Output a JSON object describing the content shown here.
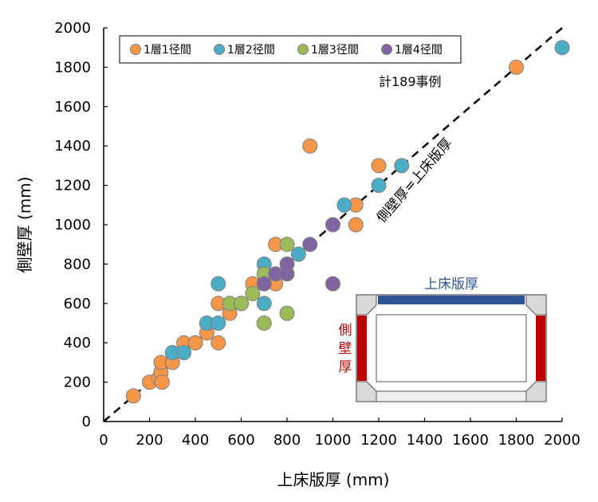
{
  "chart_data": {
    "type": "scatter",
    "xlabel": "上床版厚 (mm)",
    "ylabel": "側壁厚 (mm)",
    "xlim": [
      0,
      2000
    ],
    "ylim": [
      0,
      2000
    ],
    "x_ticks": [
      "0",
      "200",
      "400",
      "600",
      "800",
      "1000",
      "1200",
      "1400",
      "1600",
      "1800",
      "2000"
    ],
    "y_ticks": [
      "0",
      "200",
      "400",
      "600",
      "800",
      "1000",
      "1200",
      "1400",
      "1600",
      "1800",
      "2000"
    ],
    "grid": false,
    "legend_position": "top-left",
    "annotation_count": "計189事例",
    "reference_line_label": "側壁厚=上床版厚",
    "series": [
      {
        "name": "1層1径間",
        "color": "#F79646",
        "points": [
          [
            130,
            130
          ],
          [
            200,
            200
          ],
          [
            240,
            220
          ],
          [
            250,
            250
          ],
          [
            250,
            300
          ],
          [
            255,
            200
          ],
          [
            300,
            300
          ],
          [
            350,
            400
          ],
          [
            400,
            400
          ],
          [
            400,
            400
          ],
          [
            450,
            450
          ],
          [
            500,
            400
          ],
          [
            500,
            600
          ],
          [
            550,
            550
          ],
          [
            650,
            700
          ],
          [
            750,
            700
          ],
          [
            750,
            900
          ],
          [
            900,
            1400
          ],
          [
            1100,
            1000
          ],
          [
            1100,
            1100
          ],
          [
            1200,
            1300
          ],
          [
            1800,
            1800
          ]
        ]
      },
      {
        "name": "1層2径間",
        "color": "#4BACC6",
        "points": [
          [
            300,
            350
          ],
          [
            350,
            350
          ],
          [
            450,
            500
          ],
          [
            500,
            500
          ],
          [
            500,
            700
          ],
          [
            600,
            600
          ],
          [
            700,
            600
          ],
          [
            700,
            800
          ],
          [
            850,
            850
          ],
          [
            1050,
            1100
          ],
          [
            1200,
            1200
          ],
          [
            1300,
            1300
          ],
          [
            2000,
            1900
          ]
        ]
      },
      {
        "name": "1層3径間",
        "color": "#9BBB59",
        "points": [
          [
            550,
            600
          ],
          [
            600,
            600
          ],
          [
            650,
            650
          ],
          [
            700,
            500
          ],
          [
            700,
            750
          ],
          [
            800,
            550
          ],
          [
            800,
            900
          ]
        ]
      },
      {
        "name": "1層4径間",
        "color": "#8064A2",
        "points": [
          [
            700,
            700
          ],
          [
            750,
            750
          ],
          [
            800,
            750
          ],
          [
            800,
            800
          ],
          [
            900,
            900
          ],
          [
            1000,
            700
          ],
          [
            1000,
            1000
          ]
        ]
      }
    ]
  },
  "inset": {
    "top_label": "上床版厚",
    "side_label_chars": [
      "側",
      "壁",
      "厚"
    ],
    "top_color": "#2F5597",
    "side_color": "#C00000"
  }
}
